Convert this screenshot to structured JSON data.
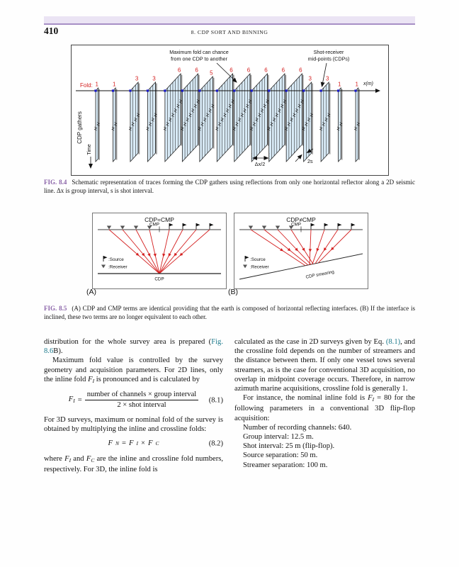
{
  "colors": {
    "accent_purple": "#8a63a8",
    "link_teal": "#1d7a8c",
    "header_bar_bg": "#ebe4f4",
    "header_bar_line": "#a78fc6",
    "panel_fill": "#d9ebf7",
    "fold_red": "#d42020",
    "midpoint_blue": "#1a1acc"
  },
  "header": {
    "page_number": "410",
    "running_title": "8. CDP SORT AND BINNING"
  },
  "fig84": {
    "label": "FIG. 8.4",
    "caption": "Schematic representation of traces forming the CDP gathers using reflections from only one horizontal reflector along a 2D seismic line. Δx is group interval, s is shot interval.",
    "ann_fold_line1": "Maximum fold can chance",
    "ann_fold_line2": "from one CDP to another",
    "ann_mid_line1": "Shot-receiver",
    "ann_mid_line2": "mid-points (CDPs)",
    "fold_label": "Fold:",
    "fold_values": [
      1,
      1,
      3,
      3,
      6,
      6,
      5,
      6,
      6,
      6,
      6,
      6,
      3,
      3,
      1,
      1
    ],
    "axis_label": "x(m)",
    "gathers_label": "CDP gathers",
    "time_label": "Time",
    "dx_label": "Δx/2",
    "shot_label": "2s"
  },
  "fig85": {
    "label": "FIG. 8.5",
    "caption": "(A) CDP and CMP terms are identical providing that the earth is composed of horizontal reflecting interfaces. (B) If the interface is inclined, these two terms are no longer equivalent to each other.",
    "panelA": {
      "title": "CDP=CMP",
      "cmp": "CMP",
      "cdp": "CDP",
      "legend_source": ":Source",
      "legend_receiver": ":Receiver",
      "tag": "(A)"
    },
    "panelB": {
      "title": "CDP≠CMP",
      "cmp": "CMP",
      "smearing": "CDP smearing",
      "legend_source": ":Source",
      "legend_receiver": ":Receiver",
      "tag": "(B)"
    }
  },
  "body": {
    "left_p1": [
      {
        "t": "distribution for the whole survey area is prepared ("
      },
      {
        "t": "Fig. 8.6",
        "c": "link"
      },
      {
        "t": "B)."
      }
    ],
    "left_p2": [
      {
        "t": "Maximum fold value is controlled by the survey geometry and acquisition parameters. For 2D lines, only the inline fold "
      },
      {
        "t": "F",
        "c": "var"
      },
      {
        "t": "I",
        "c": "varsub"
      },
      {
        "t": " is pronounced and is calculated by"
      }
    ],
    "eq1": {
      "var": "F",
      "sub": "I",
      "eq": "=",
      "num": "number of channels × group interval",
      "den": "2 × shot interval",
      "no": "(8.1)"
    },
    "left_p3": [
      {
        "t": "For 3D surveys, maximum or nominal fold of the survey is obtained by multiplying the inline and crossline folds:"
      }
    ],
    "eq2": {
      "expr": [
        {
          "t": "F",
          "c": "var"
        },
        {
          "t": "N",
          "c": "varsub"
        },
        {
          "t": " = "
        },
        {
          "t": "F",
          "c": "var"
        },
        {
          "t": "I",
          "c": "varsub"
        },
        {
          "t": " × "
        },
        {
          "t": "F",
          "c": "var"
        },
        {
          "t": "C",
          "c": "varsub"
        }
      ],
      "no": "(8.2)"
    },
    "left_p4": [
      {
        "t": "where "
      },
      {
        "t": "F",
        "c": "var"
      },
      {
        "t": "I",
        "c": "varsub"
      },
      {
        "t": " and "
      },
      {
        "t": "F",
        "c": "var"
      },
      {
        "t": "C",
        "c": "varsub"
      },
      {
        "t": " are the inline and crossline fold numbers, respectively. For 3D, the inline fold is"
      }
    ],
    "right_p1": [
      {
        "t": "calculated as the case in 2D surveys given by Eq. "
      },
      {
        "t": "(8.1)",
        "c": "link"
      },
      {
        "t": ", and the crossline fold depends on the number of streamers and the distance between them. If only one vessel tows several streamers, as is the case for conventional 3D acquisition, no overlap in midpoint coverage occurs. Therefore, in narrow azimuth marine acquisitions, crossline fold is generally 1."
      }
    ],
    "right_p2": [
      {
        "t": "For instance, the nominal inline fold is "
      },
      {
        "t": "F",
        "c": "var"
      },
      {
        "t": "I",
        "c": "varsub"
      },
      {
        "t": " = 80 for the following parameters in a conventional 3D flip-flop acquisition:"
      }
    ],
    "right_list": [
      "Number of recording channels: 640.",
      "Group interval: 12.5 m.",
      "Shot interval: 25 m (flip-flop).",
      "Source separation: 50 m.",
      "Streamer separation: 100 m."
    ]
  }
}
